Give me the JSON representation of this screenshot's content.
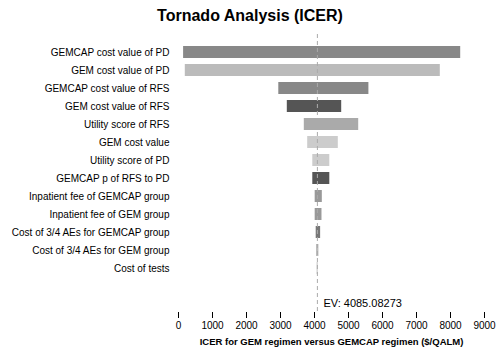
{
  "chart_data": {
    "type": "bar",
    "orientation": "horizontal",
    "title": "Tornado Analysis (ICER)",
    "x_label": "ICER for GEM regimen versus GEMCAP regimen ($/QALM)",
    "categories": [
      "GEMCAP cost value of PD",
      "GEM cost value of PD",
      "GEMCAP cost value of RFS",
      "GEM cost value of RFS",
      "Utility score of RFS",
      "GEM cost value",
      "Utility score of PD",
      "GEMCAP p of RFS to PD",
      "Inpatient fee of GEMCAP group",
      "Inpatient fee of GEM group",
      "Cost of 3/4 AEs for GEMCAP group",
      "Cost of 3/4 AEs for GEM group",
      "Cost of tests"
    ],
    "start": [
      150,
      200,
      2950,
      3200,
      3700,
      3800,
      3950,
      3950,
      4020,
      4020,
      4050,
      4060,
      4075
    ],
    "end": [
      8300,
      7700,
      5600,
      4800,
      5300,
      4700,
      4450,
      4450,
      4230,
      4220,
      4180,
      4130,
      4110
    ],
    "colors": [
      "#888888",
      "#bbbbbb",
      "#888888",
      "#555555",
      "#aaaaaa",
      "#cccccc",
      "#cccccc",
      "#555555",
      "#999999",
      "#999999",
      "#777777",
      "#bbbbbb",
      "#cccccc"
    ],
    "reference_line": {
      "value": 4085.08273,
      "label": "EV: 4085.08273"
    },
    "xlim": [
      0,
      9000
    ],
    "xticks": [
      0,
      1000,
      2000,
      3000,
      4000,
      5000,
      6000,
      7000,
      8000,
      9000
    ],
    "grid": false
  }
}
